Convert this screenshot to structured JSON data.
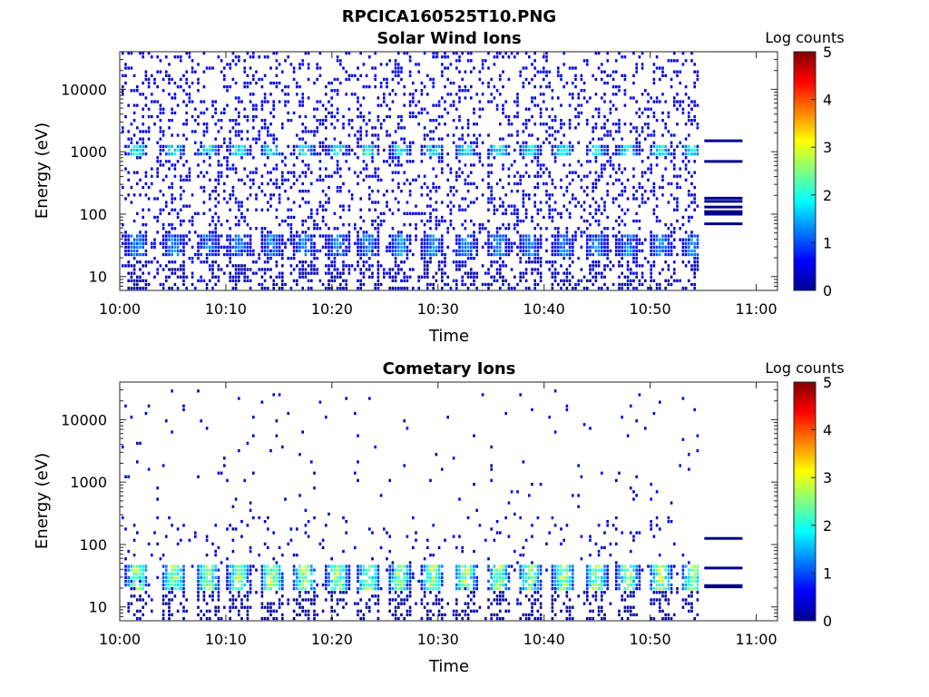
{
  "figure_title": "RPCICA160525T10.PNG",
  "chart_data": [
    {
      "type": "heatmap",
      "title": "Solar Wind Ions",
      "xlabel": "Time",
      "ylabel": "Energy (eV)",
      "x_ticks": [
        "10:00",
        "10:10",
        "10:20",
        "10:30",
        "10:40",
        "10:50",
        "11:00"
      ],
      "y_ticks": [
        "10",
        "100",
        "1000",
        "10000"
      ],
      "y_scale": "log",
      "ylim": [
        6,
        40000
      ],
      "xlim_minutes": [
        0,
        62
      ],
      "data_end_minutes": 54.6,
      "colorbar": {
        "label": "Log counts",
        "ticks": [
          "0",
          "1",
          "2",
          "3",
          "4",
          "5"
        ],
        "range": [
          0,
          5
        ],
        "colormap": "jet"
      },
      "sweep_peaks_minutes": [
        1.5,
        5,
        8.2,
        11.1,
        14.2,
        17.3,
        20.4,
        23.3,
        26.3,
        29.4,
        32.5,
        35.6,
        38.6,
        41.7,
        44.8,
        47.8,
        50.9,
        53.9
      ],
      "bands": [
        {
          "name": "low-energy band",
          "energy_min": 22,
          "energy_max": 45,
          "log_counts_peak": 1.5
        },
        {
          "name": "solar wind peak",
          "energy_min": 800,
          "energy_max": 1200,
          "log_counts_peak": 2.2
        },
        {
          "name": "background",
          "energy_min": 6,
          "energy_max": 40000,
          "log_counts_peak": 0.3
        }
      ],
      "right_edge_lines_eV": [
        1500,
        700,
        180,
        160,
        130,
        110,
        100,
        70
      ]
    },
    {
      "type": "heatmap",
      "title": "Cometary Ions",
      "xlabel": "Time",
      "ylabel": "Energy (eV)",
      "x_ticks": [
        "10:00",
        "10:10",
        "10:20",
        "10:30",
        "10:40",
        "10:50",
        "11:00"
      ],
      "y_ticks": [
        "10",
        "100",
        "1000",
        "10000"
      ],
      "y_scale": "log",
      "ylim": [
        6,
        40000
      ],
      "xlim_minutes": [
        0,
        62
      ],
      "data_end_minutes": 54.6,
      "colorbar": {
        "label": "Log counts",
        "ticks": [
          "0",
          "1",
          "2",
          "3",
          "4",
          "5"
        ],
        "range": [
          0,
          5
        ],
        "colormap": "jet"
      },
      "sweep_peaks_minutes": [
        1.5,
        5,
        8.2,
        11.1,
        14.2,
        17.3,
        20.4,
        23.3,
        26.3,
        29.4,
        32.5,
        35.6,
        38.6,
        41.7,
        44.8,
        47.8,
        50.9,
        53.9
      ],
      "bands": [
        {
          "name": "cometary peak",
          "energy_min": 18,
          "energy_max": 50,
          "log_counts_peak": 3.0
        },
        {
          "name": "background",
          "energy_min": 6,
          "energy_max": 30000,
          "log_counts_peak": 0.2
        }
      ],
      "right_edge_lines_eV": [
        125,
        42,
        22,
        21
      ]
    }
  ]
}
